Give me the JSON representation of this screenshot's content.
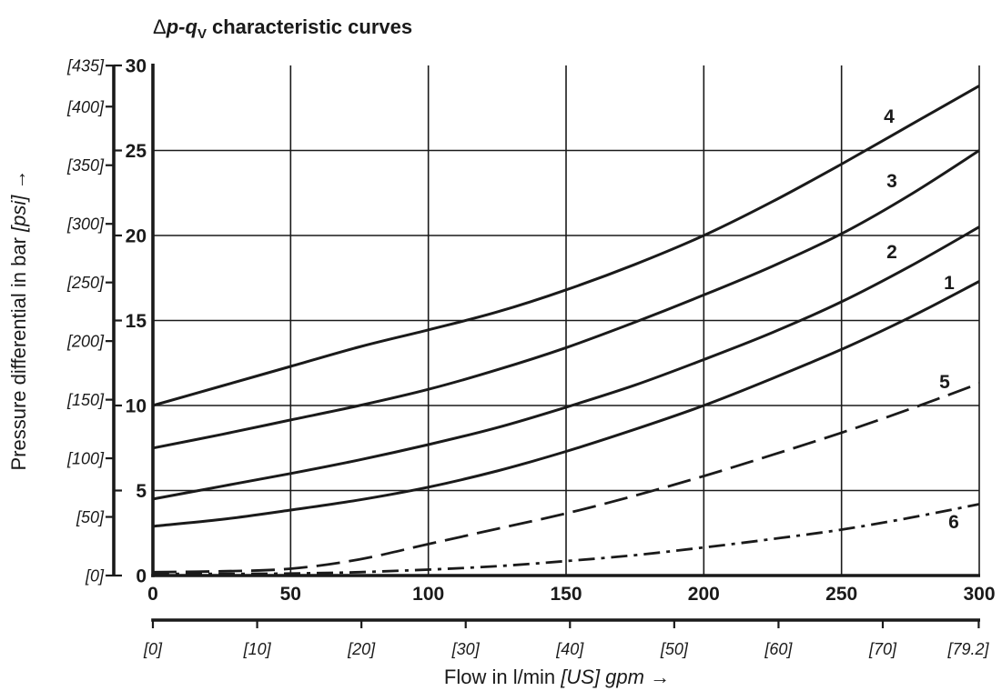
{
  "chart_data": {
    "type": "line",
    "title": {
      "delta": "Δ",
      "p": "p",
      "hyphen": "-",
      "q": "q",
      "q_subscript": "V",
      "rest": "characteristic curves"
    },
    "xlabel": {
      "text": "Flow in l/min",
      "alt_unit": "[US] gpm",
      "arrow": "→"
    },
    "ylabel": {
      "text": "Pressure differential in bar",
      "alt_unit": "[psi]",
      "arrow": "→"
    },
    "xlim": [
      0,
      300
    ],
    "ylim": [
      0,
      30
    ],
    "x_ticks": [
      0,
      50,
      100,
      150,
      200,
      250,
      300
    ],
    "y_ticks": [
      0,
      5,
      10,
      15,
      20,
      25,
      30
    ],
    "secondary_x_ticks": [
      0,
      10,
      20,
      30,
      40,
      50,
      60,
      70,
      79.2
    ],
    "secondary_x_tick_labels": [
      "[0]",
      "[10]",
      "[20]",
      "[30]",
      "[40]",
      "[50]",
      "[60]",
      "[70]",
      "[79.2]"
    ],
    "secondary_y_ticks": [
      0,
      50,
      100,
      150,
      200,
      250,
      300,
      350,
      400,
      435
    ],
    "secondary_y_tick_labels": [
      "[0]",
      "[50]",
      "[100]",
      "[150]",
      "[200]",
      "[250]",
      "[300]",
      "[350]",
      "[400]",
      "[435]"
    ],
    "grid": true,
    "line_color": "#1a1a1a",
    "x": [
      0,
      25,
      50,
      75,
      100,
      125,
      150,
      175,
      200,
      225,
      250,
      275,
      300
    ],
    "series": [
      {
        "name": "1",
        "line_style": "solid",
        "values": [
          2.9,
          3.3,
          3.85,
          4.45,
          5.2,
          6.15,
          7.3,
          8.6,
          10.0,
          11.6,
          13.3,
          15.2,
          17.3
        ]
      },
      {
        "name": "2",
        "line_style": "solid",
        "values": [
          4.5,
          5.25,
          6.0,
          6.8,
          7.7,
          8.7,
          9.9,
          11.2,
          12.7,
          14.3,
          16.1,
          18.2,
          20.5
        ]
      },
      {
        "name": "3",
        "line_style": "solid",
        "values": [
          7.5,
          8.3,
          9.15,
          10.0,
          10.95,
          12.1,
          13.4,
          14.9,
          16.5,
          18.2,
          20.1,
          22.4,
          25.0
        ]
      },
      {
        "name": "4",
        "line_style": "solid",
        "values": [
          10.0,
          11.15,
          12.3,
          13.45,
          14.45,
          15.5,
          16.8,
          18.3,
          20.0,
          22.0,
          24.2,
          26.5,
          28.8
        ]
      },
      {
        "name": "5",
        "line_style": "dashed",
        "values": [
          0.2,
          0.25,
          0.4,
          0.95,
          1.85,
          2.75,
          3.65,
          4.7,
          5.85,
          7.1,
          8.4,
          9.8,
          11.3
        ]
      },
      {
        "name": "6",
        "line_style": "dash-dot",
        "values": [
          0.1,
          0.1,
          0.12,
          0.2,
          0.35,
          0.55,
          0.85,
          1.2,
          1.65,
          2.15,
          2.7,
          3.4,
          4.2
        ]
      }
    ]
  }
}
